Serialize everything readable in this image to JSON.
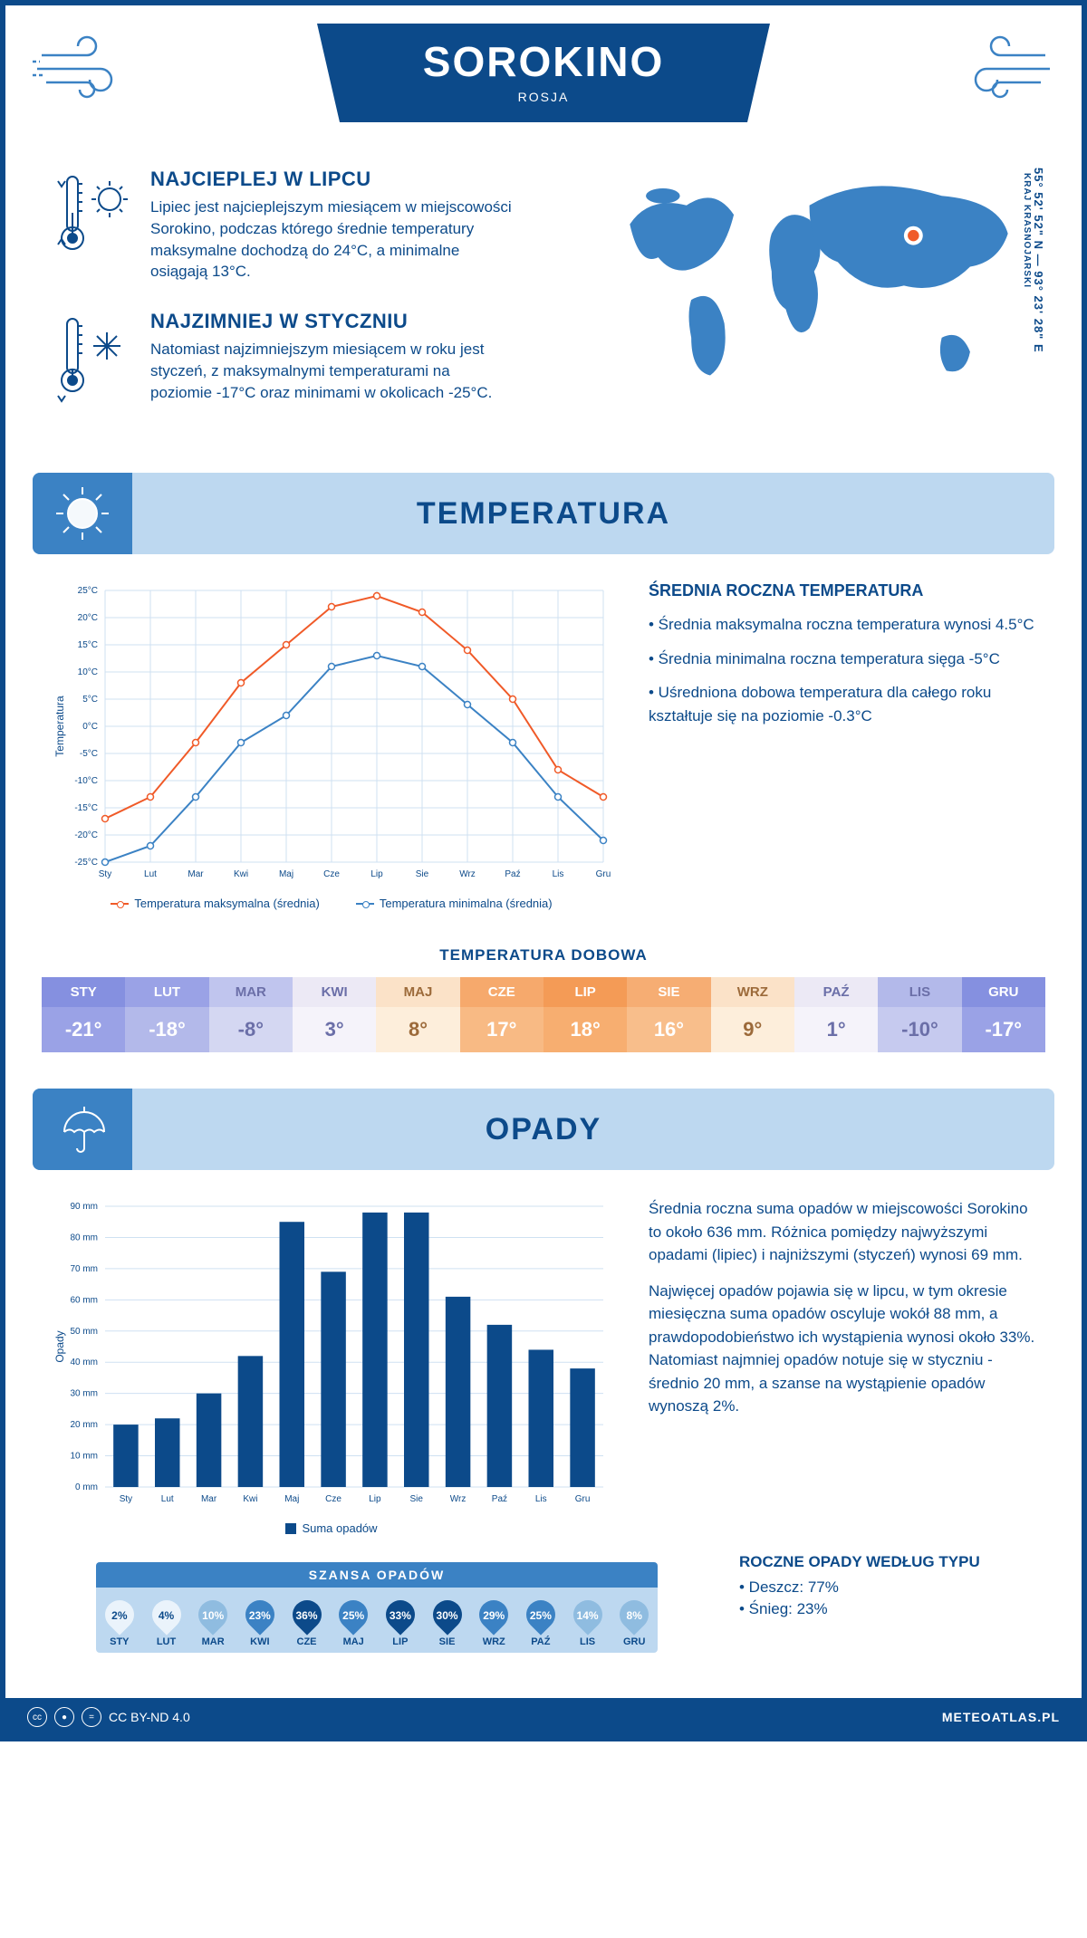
{
  "header": {
    "title": "SOROKINO",
    "country": "ROSJA"
  },
  "intro": {
    "hot": {
      "title": "NAJCIEPLEJ W LIPCU",
      "body": "Lipiec jest najcieplejszym miesiącem w miejscowości Sorokino, podczas którego średnie temperatury maksymalne dochodzą do 24°C, a minimalne osiągają 13°C."
    },
    "cold": {
      "title": "NAJZIMNIEJ W STYCZNIU",
      "body": "Natomiast najzimniejszym miesiącem w roku jest styczeń, z maksymalnymi temperaturami na poziomie -17°C oraz minimami w okolicach -25°C."
    },
    "coords": "55° 52' 52\" N — 93° 23' 28\" E",
    "region": "KRAJ KRASNOJARSKI"
  },
  "temperature": {
    "heading": "TEMPERATURA",
    "months": [
      "Sty",
      "Lut",
      "Mar",
      "Kwi",
      "Maj",
      "Cze",
      "Lip",
      "Sie",
      "Wrz",
      "Paź",
      "Lis",
      "Gru"
    ],
    "max_series": [
      -17,
      -13,
      -3,
      8,
      15,
      22,
      24,
      21,
      14,
      5,
      -8,
      -13
    ],
    "min_series": [
      -25,
      -22,
      -13,
      -3,
      2,
      11,
      13,
      11,
      4,
      -3,
      -13,
      -21
    ],
    "ylim": [
      -25,
      25
    ],
    "ytick_step": 5,
    "colors": {
      "max": "#f05a28",
      "min": "#3b82c4",
      "grid": "#cfe1f2"
    },
    "legend_max": "Temperatura maksymalna (średnia)",
    "legend_min": "Temperatura minimalna (średnia)",
    "axis_label": "Temperatura",
    "summary": {
      "title": "ŚREDNIA ROCZNA TEMPERATURA",
      "p1": "• Średnia maksymalna roczna temperatura wynosi 4.5°C",
      "p2": "• Średnia minimalna roczna temperatura sięga -5°C",
      "p3": "• Uśredniona dobowa temperatura dla całego roku kształtuje się na poziomie -0.3°C"
    }
  },
  "daily": {
    "heading": "TEMPERATURA DOBOWA",
    "months": [
      "STY",
      "LUT",
      "MAR",
      "KWI",
      "MAJ",
      "CZE",
      "LIP",
      "SIE",
      "WRZ",
      "PAŹ",
      "LIS",
      "GRU"
    ],
    "values": [
      "-21°",
      "-18°",
      "-8°",
      "3°",
      "8°",
      "17°",
      "18°",
      "16°",
      "9°",
      "1°",
      "-10°",
      "-17°"
    ],
    "head_colors": [
      "#8590e0",
      "#9aa2e6",
      "#c0c5ee",
      "#ece9f5",
      "#fbe2c8",
      "#f6a96c",
      "#f49b56",
      "#f6ad73",
      "#fbe2c8",
      "#ece9f5",
      "#b3b9ea",
      "#8590e0"
    ],
    "val_colors": [
      "#9aa2e6",
      "#b3b9ea",
      "#d4d7f2",
      "#f5f3fa",
      "#fdeedb",
      "#f8ba84",
      "#f7ae70",
      "#f8be8b",
      "#fdeedb",
      "#f5f3fa",
      "#c6caef",
      "#9aa2e6"
    ],
    "text_colors": [
      "#fff",
      "#fff",
      "#6b6fa8",
      "#6b6fa8",
      "#9c6a3a",
      "#fff",
      "#fff",
      "#fff",
      "#9c6a3a",
      "#6b6fa8",
      "#6b6fa8",
      "#fff"
    ]
  },
  "precip": {
    "heading": "OPADY",
    "months": [
      "Sty",
      "Lut",
      "Mar",
      "Kwi",
      "Maj",
      "Cze",
      "Lip",
      "Sie",
      "Wrz",
      "Paź",
      "Lis",
      "Gru"
    ],
    "values": [
      20,
      22,
      30,
      42,
      85,
      69,
      88,
      88,
      61,
      52,
      44,
      38
    ],
    "ylim": [
      0,
      90
    ],
    "ytick_step": 10,
    "bar_color": "#0c4a8a",
    "grid_color": "#cfe1f2",
    "axis_label": "Opady",
    "legend": "Suma opadów",
    "summary": {
      "p1": "Średnia roczna suma opadów w miejscowości Sorokino to około 636 mm. Różnica pomiędzy najwyższymi opadami (lipiec) i najniższymi (styczeń) wynosi 69 mm.",
      "p2": "Najwięcej opadów pojawia się w lipcu, w tym okresie miesięczna suma opadów oscyluje wokół 88 mm, a prawdopodobieństwo ich wystąpienia wynosi około 33%. Natomiast najmniej opadów notuje się w styczniu - średnio 20 mm, a szanse na wystąpienie opadów wynoszą 2%."
    },
    "type_title": "ROCZNE OPADY WEDŁUG TYPU",
    "type_rain": "• Deszcz: 77%",
    "type_snow": "• Śnieg: 23%"
  },
  "chance": {
    "title": "SZANSA OPADÓW",
    "months": [
      "STY",
      "LUT",
      "MAR",
      "KWI",
      "CZE",
      "MAJ",
      "LIP",
      "SIE",
      "WRZ",
      "PAŹ",
      "LIS",
      "GRU"
    ],
    "values": [
      "2%",
      "4%",
      "10%",
      "23%",
      "36%",
      "25%",
      "33%",
      "30%",
      "29%",
      "25%",
      "14%",
      "8%"
    ],
    "drop_colors": [
      "#eaf3fb",
      "#eaf3fb",
      "#8fbce0",
      "#3b82c4",
      "#0c4a8a",
      "#3b82c4",
      "#0c4a8a",
      "#0c4a8a",
      "#3b82c4",
      "#3b82c4",
      "#8fbce0",
      "#8fbce0"
    ],
    "text_colors": [
      "#0c4a8a",
      "#0c4a8a",
      "#fff",
      "#fff",
      "#fff",
      "#fff",
      "#fff",
      "#fff",
      "#fff",
      "#fff",
      "#fff",
      "#fff"
    ]
  },
  "footer": {
    "license": "CC BY-ND 4.0",
    "site": "METEOATLAS.PL"
  },
  "colors": {
    "primary": "#0c4a8a",
    "light": "#bdd8f0",
    "accent": "#3b82c4"
  }
}
